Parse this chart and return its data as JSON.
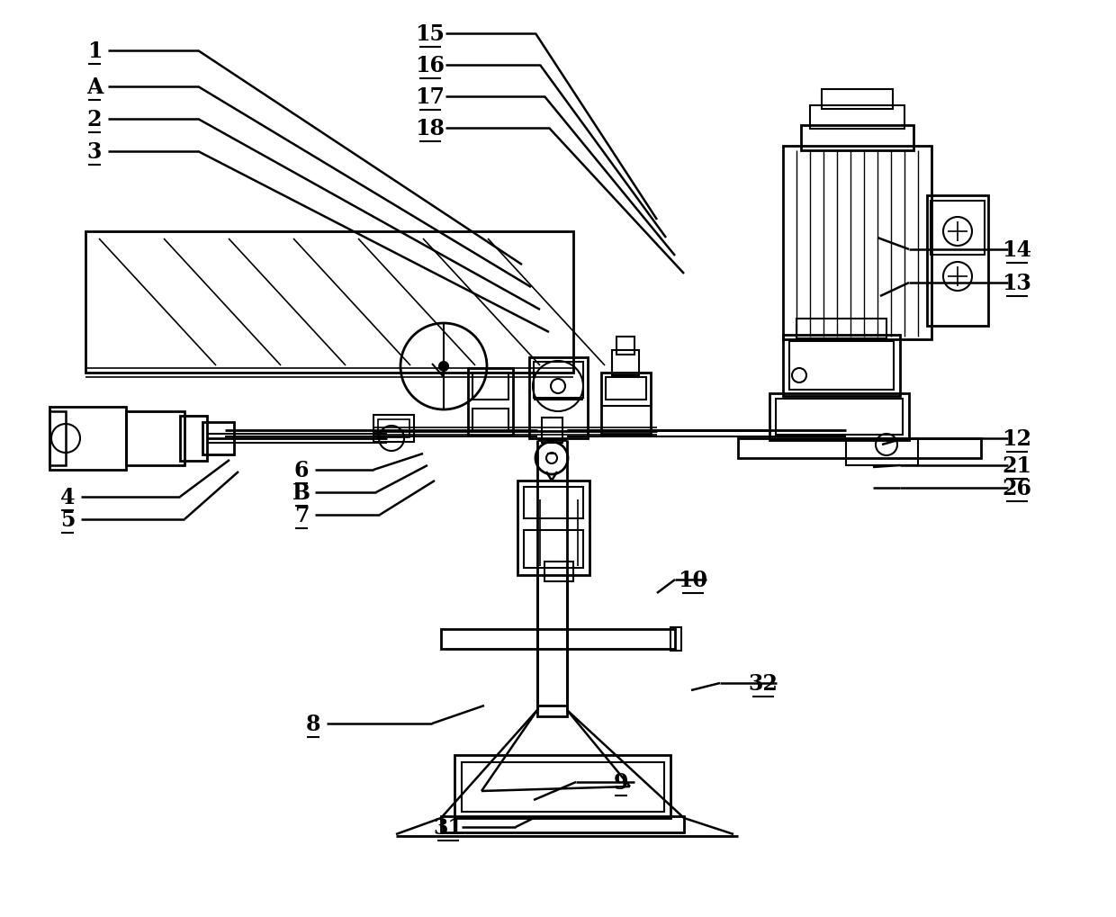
{
  "bg_color": "#ffffff",
  "line_color": "#000000",
  "figsize": [
    12.4,
    10.2
  ],
  "dpi": 100,
  "labels": [
    [
      "1",
      105,
      57
    ],
    [
      "A",
      105,
      97
    ],
    [
      "2",
      105,
      133
    ],
    [
      "3",
      105,
      169
    ],
    [
      "15",
      478,
      38
    ],
    [
      "16",
      478,
      73
    ],
    [
      "17",
      478,
      108
    ],
    [
      "18",
      478,
      143
    ],
    [
      "4",
      75,
      553
    ],
    [
      "5",
      75,
      578
    ],
    [
      "6",
      335,
      523
    ],
    [
      "B",
      335,
      548
    ],
    [
      "7",
      335,
      573
    ],
    [
      "8",
      348,
      805
    ],
    [
      "9",
      690,
      870
    ],
    [
      "10",
      770,
      645
    ],
    [
      "12",
      1130,
      488
    ],
    [
      "13",
      1130,
      315
    ],
    [
      "14",
      1130,
      278
    ],
    [
      "21",
      1130,
      518
    ],
    [
      "26",
      1130,
      543
    ],
    [
      "31",
      498,
      920
    ],
    [
      "32",
      848,
      760
    ]
  ]
}
